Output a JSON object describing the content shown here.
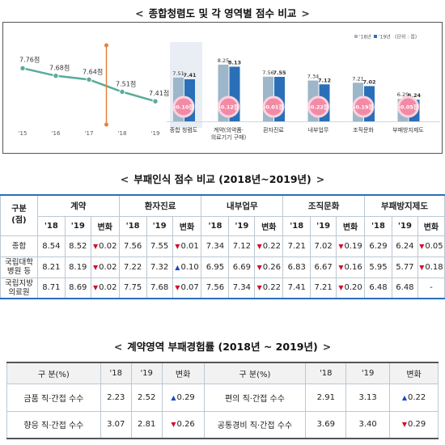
{
  "section1": {
    "title": "종합청렴도 및 각 영역별 점수 비교"
  },
  "section2": {
    "title": "부패인식 점수 비교 (2018년~2019년)"
  },
  "section3": {
    "title": "계약영역 부패경험률 (2018년 ~ 2019년)"
  },
  "chart_data": [
    {
      "type": "line",
      "x": [
        "'15",
        "'16",
        "'17",
        "'18",
        "'19"
      ],
      "values": [
        7.76,
        7.68,
        7.64,
        7.51,
        7.41
      ],
      "labels": [
        "7.76점",
        "7.68점",
        "7.64점",
        "7.51점",
        "7.41점"
      ],
      "color": "#5aab9b",
      "marker_between": [
        "'17",
        "'18"
      ]
    },
    {
      "type": "bar",
      "categories": [
        "종합 청렴도",
        "계약(의약품·의료기기 구매)",
        "환자진료",
        "내부업무",
        "조직문화",
        "부패방지제도"
      ],
      "category_lines": [
        [
          "종합 청렴도"
        ],
        [
          "계약(의약품·",
          "의료기기 구매)"
        ],
        [
          "환자진료"
        ],
        [
          "내부업무"
        ],
        [
          "조직문화"
        ],
        [
          "부패방지제도"
        ]
      ],
      "series": [
        {
          "name": "'18년",
          "values": [
            7.51,
            8.25,
            7.56,
            7.34,
            7.21,
            6.29
          ],
          "labels": [
            "7.51",
            "8.25",
            "7.56",
            "7.34",
            "7.21",
            "6.29"
          ],
          "color": "#9eb6c9"
        },
        {
          "name": "'19년",
          "values": [
            7.41,
            8.13,
            7.55,
            7.12,
            7.02,
            6.24
          ],
          "labels": [
            "7.41",
            "8.13",
            "7.55",
            "7.12",
            "7.02",
            "6.24"
          ],
          "color": "#2a6fb8"
        }
      ],
      "changes": [
        "-0.10점",
        "-0.12점",
        "-0.01점",
        "-0.22점",
        "-0.19점",
        "-0.05점"
      ],
      "unit_note": "(단위 : 점)",
      "legend_position": "top-right"
    }
  ],
  "table2": {
    "rowhead": "구분\n(점)",
    "groups": [
      "계약",
      "환자진료",
      "내부업무",
      "조직문화",
      "부패방지제도"
    ],
    "subheads": [
      "'18",
      "'19",
      "변화"
    ],
    "rows": [
      {
        "label": "종합",
        "cells": [
          [
            "8.54",
            "8.52",
            "0.02",
            "down"
          ],
          [
            "7.56",
            "7.55",
            "0.01",
            "down"
          ],
          [
            "7.34",
            "7.12",
            "0.22",
            "down"
          ],
          [
            "7.21",
            "7.02",
            "0.19",
            "down"
          ],
          [
            "6.29",
            "6.24",
            "0.05",
            "down"
          ]
        ]
      },
      {
        "label": "국립대학\n병원 등",
        "cells": [
          [
            "8.21",
            "8.19",
            "0.02",
            "down"
          ],
          [
            "7.22",
            "7.32",
            "0.10",
            "up"
          ],
          [
            "6.95",
            "6.69",
            "0.26",
            "down"
          ],
          [
            "6.83",
            "6.67",
            "0.16",
            "down"
          ],
          [
            "5.95",
            "5.77",
            "0.18",
            "down"
          ]
        ]
      },
      {
        "label": "국립지방\n의료원",
        "cells": [
          [
            "8.71",
            "8.69",
            "0.02",
            "down"
          ],
          [
            "7.75",
            "7.68",
            "0.07",
            "down"
          ],
          [
            "7.56",
            "7.34",
            "0.22",
            "down"
          ],
          [
            "7.41",
            "7.21",
            "0.20",
            "down"
          ],
          [
            "6.48",
            "6.48",
            "-",
            "none"
          ]
        ]
      }
    ]
  },
  "table3": {
    "headers": [
      "구 분(%)",
      "'18",
      "'19",
      "변화",
      "구 분(%)",
      "'18",
      "'19",
      "변화"
    ],
    "rows": [
      {
        "left": [
          "금품 직·간접 수수",
          "2.23",
          "2.52",
          "0.29",
          "up"
        ],
        "right": [
          "편의 직·간접 수수",
          "2.91",
          "3.13",
          "0.22",
          "up"
        ]
      },
      {
        "left": [
          "향응 직·간접 수수",
          "3.07",
          "2.81",
          "0.26",
          "down"
        ],
        "right": [
          "공통경비 직·간접 수수",
          "3.69",
          "3.40",
          "0.29",
          "down"
        ]
      }
    ]
  }
}
